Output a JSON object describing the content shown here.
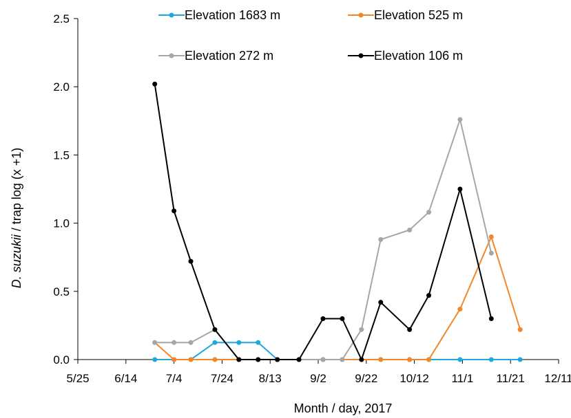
{
  "chart_data": {
    "type": "line",
    "xlabel": "Month / day, 2017",
    "ylabel_italic": "D. suzukii",
    "ylabel_rest": " / trap log (x +1)",
    "x_ticks": [
      "5/25",
      "6/14",
      "7/4",
      "7/24",
      "8/13",
      "9/2",
      "9/22",
      "10/12",
      "11/1",
      "11/21",
      "12/11"
    ],
    "y_ticks": [
      "0.0",
      "0.5",
      "1.0",
      "1.5",
      "2.0",
      "2.5"
    ],
    "xlim": [
      "5/25",
      "12/11"
    ],
    "ylim": [
      0,
      2.5
    ],
    "grid": false,
    "legend_position": "top",
    "x": [
      "6/26",
      "7/4",
      "7/11",
      "7/21",
      "7/31",
      "8/8",
      "8/16",
      "8/25",
      "9/4",
      "9/12",
      "9/20",
      "9/28",
      "10/10",
      "10/18",
      "10/31",
      "11/13",
      "11/25"
    ],
    "series": [
      {
        "name": "Elevation 1683 m",
        "color": "#1fa8e0",
        "values": [
          0,
          0,
          0,
          0.125,
          0.125,
          0.125,
          0,
          0,
          0,
          0,
          0,
          0,
          0,
          0,
          0,
          0,
          0
        ]
      },
      {
        "name": "Elevation 525 m",
        "color": "#f4862a",
        "values": [
          0.125,
          0,
          0,
          0,
          0,
          0,
          0,
          0,
          0,
          0,
          0,
          0,
          0,
          0,
          0.37,
          0.9,
          0.22
        ]
      },
      {
        "name": "Elevation 272 m",
        "color": "#a6a6a6",
        "values": [
          0.125,
          0.125,
          0.125,
          0.22,
          0,
          0,
          0,
          0,
          0,
          0,
          0.22,
          0.88,
          0.95,
          1.08,
          1.76,
          0.78,
          null
        ]
      },
      {
        "name": "Elevation 106 m",
        "color": "#000000",
        "values": [
          2.02,
          1.09,
          0.72,
          0.22,
          0,
          0,
          0,
          0,
          0.3,
          0.3,
          0,
          0.42,
          0.22,
          0.47,
          1.25,
          0.3,
          null
        ]
      }
    ]
  }
}
